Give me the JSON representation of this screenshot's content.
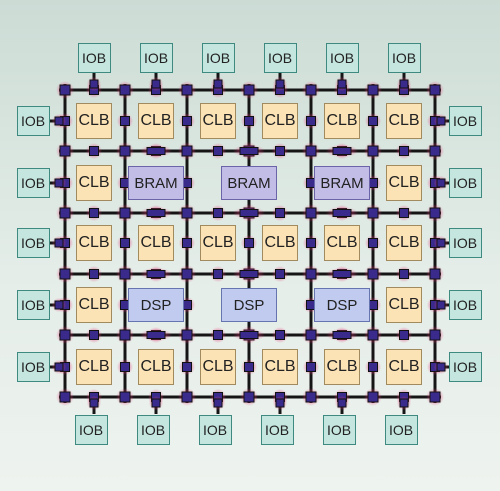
{
  "blocks": {
    "iob": "IOB",
    "clb": "CLB",
    "bram": "BRAM",
    "dsp": "DSP"
  },
  "grid": {
    "rows": [
      "clb",
      "bram",
      "clb",
      "dsp",
      "clb"
    ],
    "columns": 6,
    "io_top_count": 6,
    "io_bottom_count": 6,
    "io_side_count": 5
  },
  "colors": {
    "background": "#dde8e3",
    "wire": "#151515",
    "switch_fill": "#3a2a8c",
    "switch_glow": "#e33a7a",
    "iob_fill": "#c5e6df",
    "clb_fill": "#fbe3b6",
    "bram_fill": "#c2bde6",
    "dsp_fill": "#c0cbef"
  }
}
